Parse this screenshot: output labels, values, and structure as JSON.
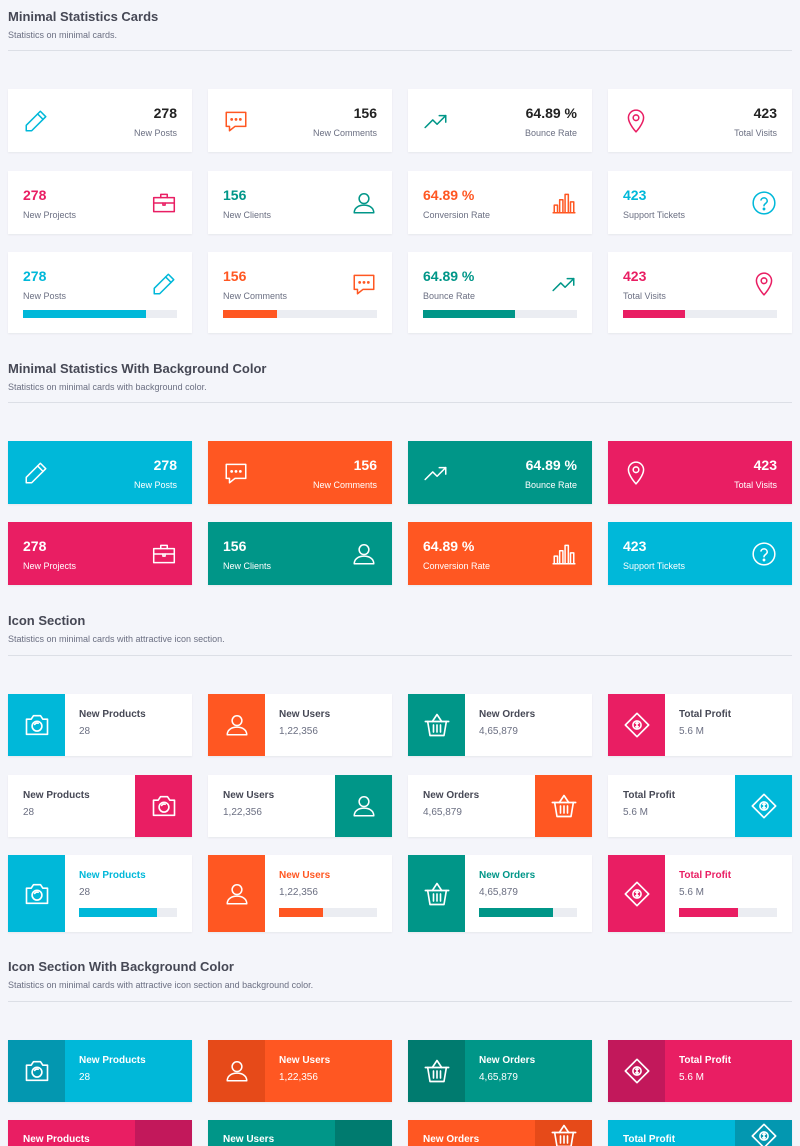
{
  "colors": {
    "cyan": "#00b8d9",
    "orange": "#ff5722",
    "teal": "#009688",
    "pink": "#e91e63",
    "cyanDark": "#0397b0",
    "orangeDark": "#e64a19",
    "tealDark": "#007b6f",
    "pinkDark": "#c2185b"
  },
  "sections": {
    "s1": {
      "title": "Minimal Statistics Cards",
      "subtitle": "Statistics on minimal cards."
    },
    "s2": {
      "title": "Minimal Statistics With Background Color",
      "subtitle": "Statistics on minimal cards with background color."
    },
    "s3": {
      "title": "Icon Section",
      "subtitle": "Statistics on minimal cards with attractive icon section."
    },
    "s4": {
      "title": "Icon Section With Background Color",
      "subtitle": "Statistics on minimal cards with attractive icon section and background color."
    }
  },
  "minimal_row1": [
    {
      "value": "278",
      "label": "New Posts",
      "icon": "pencil-icon"
    },
    {
      "value": "156",
      "label": "New Comments",
      "icon": "chat-icon"
    },
    {
      "value": "64.89 %",
      "label": "Bounce Rate",
      "icon": "trend-up-icon"
    },
    {
      "value": "423",
      "label": "Total Visits",
      "icon": "map-pin-icon"
    }
  ],
  "minimal_row2": [
    {
      "value": "278",
      "label": "New Projects",
      "icon": "briefcase-icon"
    },
    {
      "value": "156",
      "label": "New Clients",
      "icon": "user-icon"
    },
    {
      "value": "64.89 %",
      "label": "Conversion Rate",
      "icon": "bar-chart-icon"
    },
    {
      "value": "423",
      "label": "Support Tickets",
      "icon": "help-circle-icon"
    }
  ],
  "minimal_row3": [
    {
      "value": "278",
      "label": "New Posts",
      "icon": "pencil-icon",
      "progress": 0.8
    },
    {
      "value": "156",
      "label": "New Comments",
      "icon": "chat-icon",
      "progress": 0.35
    },
    {
      "value": "64.89 %",
      "label": "Bounce Rate",
      "icon": "trend-up-icon",
      "progress": 0.6
    },
    {
      "value": "423",
      "label": "Total Visits",
      "icon": "map-pin-icon",
      "progress": 0.4
    }
  ],
  "bg_row1": [
    {
      "value": "278",
      "label": "New Posts",
      "icon": "pencil-icon"
    },
    {
      "value": "156",
      "label": "New Comments",
      "icon": "chat-icon"
    },
    {
      "value": "64.89 %",
      "label": "Bounce Rate",
      "icon": "trend-up-icon"
    },
    {
      "value": "423",
      "label": "Total Visits",
      "icon": "map-pin-icon"
    }
  ],
  "bg_row2": [
    {
      "value": "278",
      "label": "New Projects",
      "icon": "briefcase-icon"
    },
    {
      "value": "156",
      "label": "New Clients",
      "icon": "user-icon"
    },
    {
      "value": "64.89 %",
      "label": "Conversion Rate",
      "icon": "bar-chart-icon"
    },
    {
      "value": "423",
      "label": "Support Tickets",
      "icon": "help-circle-icon"
    }
  ],
  "icon_items": [
    {
      "name": "New Products",
      "value": "28",
      "icon": "camera-icon",
      "progress": 0.8
    },
    {
      "name": "New Users",
      "value": "1,22,356",
      "icon": "user-icon",
      "progress": 0.45
    },
    {
      "name": "New Orders",
      "value": "4,65,879",
      "icon": "basket-icon",
      "progress": 0.75
    },
    {
      "name": "Total Profit",
      "value": "5.6 M",
      "icon": "money-icon",
      "progress": 0.6
    }
  ]
}
